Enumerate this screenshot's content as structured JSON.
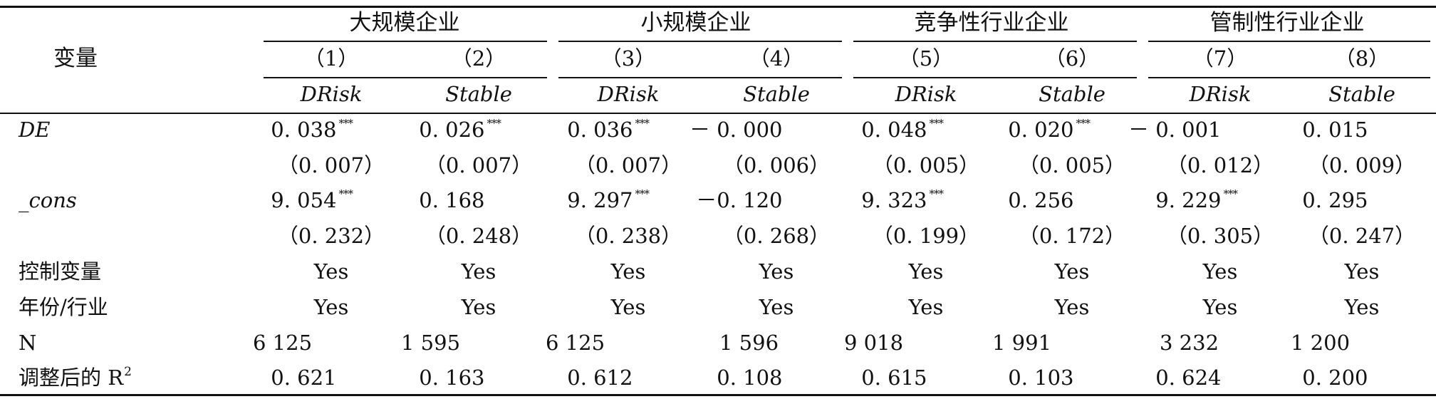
{
  "table": {
    "var_header": "变量",
    "groups": [
      {
        "label": "大规模企业"
      },
      {
        "label": "小规模企业"
      },
      {
        "label": "竞争性行业企业"
      },
      {
        "label": "管制性行业企业"
      }
    ],
    "col_numbers": [
      "（1）",
      "（2）",
      "（3）",
      "（4）",
      "（5）",
      "（6）",
      "（7）",
      "（8）"
    ],
    "col_vars": [
      "DRisk",
      "Stable",
      "DRisk",
      "Stable",
      "DRisk",
      "Stable",
      "DRisk",
      "Stable"
    ],
    "rows": [
      {
        "label": "DE",
        "italic": true,
        "cells": [
          {
            "v": "0. 038",
            "s": "***"
          },
          {
            "v": "0. 026",
            "s": "***"
          },
          {
            "v": "0. 036",
            "s": "***"
          },
          {
            "v": "－ 0. 000",
            "s": ""
          },
          {
            "v": "0. 048",
            "s": "***"
          },
          {
            "v": "0. 020",
            "s": "***"
          },
          {
            "v": "－ 0. 001",
            "s": ""
          },
          {
            "v": "0. 015",
            "s": ""
          }
        ]
      },
      {
        "label": "",
        "italic": false,
        "cells": [
          {
            "v": "（0. 007）",
            "s": ""
          },
          {
            "v": "（0. 007）",
            "s": ""
          },
          {
            "v": "（0. 007）",
            "s": ""
          },
          {
            "v": "（0. 006）",
            "s": ""
          },
          {
            "v": "（0. 005）",
            "s": ""
          },
          {
            "v": "（0. 005）",
            "s": ""
          },
          {
            "v": "（0. 012）",
            "s": ""
          },
          {
            "v": "（0. 009）",
            "s": ""
          }
        ]
      },
      {
        "label": "_cons",
        "italic": true,
        "cells": [
          {
            "v": "9. 054",
            "s": "***"
          },
          {
            "v": "0. 168",
            "s": ""
          },
          {
            "v": "9. 297",
            "s": "***"
          },
          {
            "v": "－0. 120",
            "s": ""
          },
          {
            "v": "9. 323",
            "s": "***"
          },
          {
            "v": "0. 256",
            "s": ""
          },
          {
            "v": "9. 229",
            "s": "***"
          },
          {
            "v": "0. 295",
            "s": ""
          }
        ]
      },
      {
        "label": "",
        "italic": false,
        "cells": [
          {
            "v": "（0. 232）",
            "s": ""
          },
          {
            "v": "（0. 248）",
            "s": ""
          },
          {
            "v": "（0. 238）",
            "s": ""
          },
          {
            "v": "（0. 268）",
            "s": ""
          },
          {
            "v": "（0. 199）",
            "s": ""
          },
          {
            "v": "（0. 172）",
            "s": ""
          },
          {
            "v": "（0. 305）",
            "s": ""
          },
          {
            "v": "（0. 247）",
            "s": ""
          }
        ]
      },
      {
        "label": "控制变量",
        "italic": false,
        "cells": [
          {
            "v": "Yes",
            "s": ""
          },
          {
            "v": "Yes",
            "s": ""
          },
          {
            "v": "Yes",
            "s": ""
          },
          {
            "v": "Yes",
            "s": ""
          },
          {
            "v": "Yes",
            "s": ""
          },
          {
            "v": "Yes",
            "s": ""
          },
          {
            "v": "Yes",
            "s": ""
          },
          {
            "v": "Yes",
            "s": ""
          }
        ]
      },
      {
        "label": "年份/行业",
        "italic": false,
        "cells": [
          {
            "v": "Yes",
            "s": ""
          },
          {
            "v": "Yes",
            "s": ""
          },
          {
            "v": "Yes",
            "s": ""
          },
          {
            "v": "Yes",
            "s": ""
          },
          {
            "v": "Yes",
            "s": ""
          },
          {
            "v": "Yes",
            "s": ""
          },
          {
            "v": "Yes",
            "s": ""
          },
          {
            "v": "Yes",
            "s": ""
          }
        ]
      },
      {
        "label": "N",
        "italic": false,
        "align": "left",
        "cells": [
          {
            "v": "6 125",
            "s": ""
          },
          {
            "v": "1 595",
            "s": ""
          },
          {
            "v": "6 125",
            "s": ""
          },
          {
            "v": "1 596",
            "s": ""
          },
          {
            "v": "9 018",
            "s": ""
          },
          {
            "v": "1 991",
            "s": ""
          },
          {
            "v": "3 232",
            "s": ""
          },
          {
            "v": "1 200",
            "s": ""
          }
        ]
      },
      {
        "label": "调整后的 R",
        "label_sup": "2",
        "italic": false,
        "cells": [
          {
            "v": "0. 621",
            "s": ""
          },
          {
            "v": "0. 163",
            "s": ""
          },
          {
            "v": "0. 612",
            "s": ""
          },
          {
            "v": "0. 108",
            "s": ""
          },
          {
            "v": "0. 615",
            "s": ""
          },
          {
            "v": "0. 103",
            "s": ""
          },
          {
            "v": "0. 624",
            "s": ""
          },
          {
            "v": "0. 200",
            "s": ""
          }
        ]
      }
    ]
  }
}
